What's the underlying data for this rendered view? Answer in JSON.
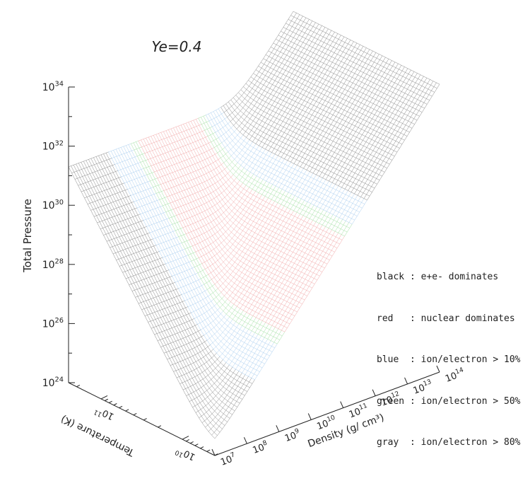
{
  "chart_data": {
    "type": "surface",
    "title": "Ye=0.4",
    "zlabel": "Total Pressure",
    "xlabel": "Density (g/ cm³)",
    "ylabel": "Temperature (K)",
    "z_ticks": [
      {
        "base": "10",
        "exp": "24"
      },
      {
        "base": "10",
        "exp": "26"
      },
      {
        "base": "10",
        "exp": "28"
      },
      {
        "base": "10",
        "exp": "30"
      },
      {
        "base": "10",
        "exp": "32"
      },
      {
        "base": "10",
        "exp": "34"
      }
    ],
    "density_ticks": [
      {
        "base": "10",
        "exp": "7"
      },
      {
        "base": "10",
        "exp": "8"
      },
      {
        "base": "10",
        "exp": "9"
      },
      {
        "base": "10",
        "exp": "10"
      },
      {
        "base": "10",
        "exp": "11"
      },
      {
        "base": "10",
        "exp": "12"
      },
      {
        "base": "10",
        "exp": "13"
      },
      {
        "base": "10",
        "exp": "14"
      }
    ],
    "temperature_ticks": [
      {
        "base": "10",
        "exp": "10"
      },
      {
        "base": "10",
        "exp": "11"
      }
    ],
    "zlim_log10": [
      24,
      34
    ],
    "xlim_log10": [
      7,
      14
    ],
    "ylim_log10": [
      9.6,
      11.4
    ],
    "regions": [
      {
        "name": "black",
        "color": "#888888",
        "density_log10": [
          7,
          8.2
        ]
      },
      {
        "name": "blue",
        "color": "#a9cef0",
        "density_log10": [
          8.2,
          8.9
        ]
      },
      {
        "name": "green",
        "color": "#a3e0a3",
        "density_log10": [
          8.9,
          9.1
        ]
      },
      {
        "name": "red",
        "color": "#f2a8a8",
        "density_log10": [
          9.1,
          11.0
        ]
      },
      {
        "name": "green",
        "color": "#a3e0a3",
        "density_log10": [
          11.0,
          11.25
        ]
      },
      {
        "name": "blue",
        "color": "#a9cef0",
        "density_log10": [
          11.25,
          11.7
        ]
      },
      {
        "name": "gray",
        "color": "#888888",
        "density_log10": [
          11.7,
          14
        ]
      }
    ],
    "legend": [
      "black : e+e- dominates",
      "red   : nuclear dominates",
      "blue  : ion/electron > 10%",
      "green : ion/electron > 50%",
      "gray  : ion/electron > 80%"
    ],
    "legend_position": "right"
  }
}
